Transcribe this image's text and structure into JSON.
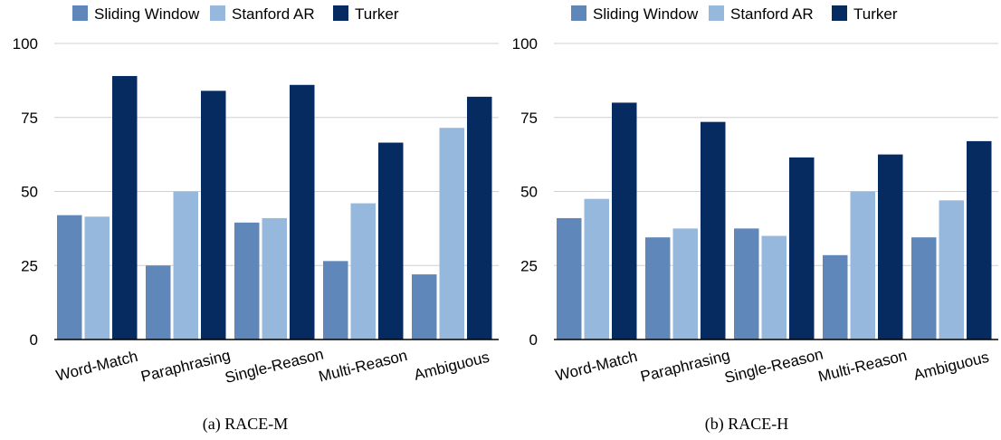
{
  "legend": {
    "labels": [
      "Sliding Window",
      "Stanford AR",
      "Turker"
    ],
    "colors": [
      "#5f87ba",
      "#96b8dd",
      "#052b61"
    ]
  },
  "chart_data": [
    {
      "type": "bar",
      "caption": "(a) RACE-M",
      "categories": [
        "Word-Match",
        "Paraphrasing",
        "Single-Reason",
        "Multi-Reason",
        "Ambiguous"
      ],
      "series": [
        {
          "name": "Sliding Window",
          "values": [
            42,
            25,
            39.5,
            26.5,
            22
          ]
        },
        {
          "name": "Stanford AR",
          "values": [
            41.5,
            50,
            41,
            46,
            71.5
          ]
        },
        {
          "name": "Turker",
          "values": [
            89,
            84,
            86,
            66.5,
            82
          ]
        }
      ],
      "yticks": [
        0,
        25,
        50,
        75,
        100
      ],
      "ylim": [
        0,
        100
      ],
      "grid": true,
      "legend_position": "top"
    },
    {
      "type": "bar",
      "caption": "(b) RACE-H",
      "categories": [
        "Word-Match",
        "Paraphrasing",
        "Single-Reason",
        "Multi-Reason",
        "Ambiguous"
      ],
      "series": [
        {
          "name": "Sliding Window",
          "values": [
            41,
            34.5,
            37.5,
            28.5,
            34.5
          ]
        },
        {
          "name": "Stanford AR",
          "values": [
            47.5,
            37.5,
            35,
            50,
            47
          ]
        },
        {
          "name": "Turker",
          "values": [
            80,
            73.5,
            61.5,
            62.5,
            67
          ]
        }
      ],
      "yticks": [
        0,
        25,
        50,
        75,
        100
      ],
      "ylim": [
        0,
        100
      ],
      "grid": true,
      "legend_position": "top"
    }
  ]
}
